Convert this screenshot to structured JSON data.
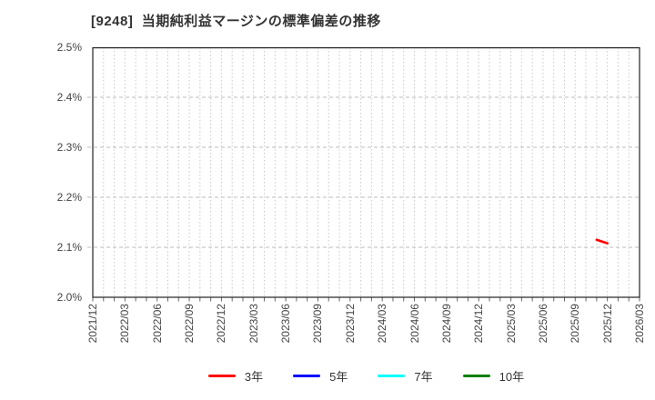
{
  "title": "[9248]  当期純利益マージンの標準偏差の推移",
  "chart_data": {
    "type": "line",
    "title": "[9248]  当期純利益マージンの標準偏差の推移",
    "x_categories": [
      "2021/12",
      "2022/03",
      "2022/06",
      "2022/09",
      "2022/12",
      "2023/03",
      "2023/06",
      "2023/09",
      "2023/12",
      "2024/03",
      "2024/06",
      "2024/09",
      "2024/12",
      "2025/03",
      "2025/06",
      "2025/09",
      "2025/12",
      "2026/03"
    ],
    "ytick_labels": [
      "2.5%",
      "2.4%",
      "2.3%",
      "2.2%",
      "2.1%",
      "2.0%"
    ],
    "ylim": [
      2.0,
      2.5
    ],
    "y_unit": "%",
    "grid": {
      "vertical": "monthly dotted",
      "horizontal": "0.1% dashed",
      "on": true
    },
    "legend_position": "bottom",
    "series": [
      {
        "name": "3年",
        "color": "#ff0000",
        "points": [
          {
            "x": "2025/11",
            "y": 2.115
          },
          {
            "x": "2025/12",
            "y": 2.108
          }
        ]
      },
      {
        "name": "5年",
        "color": "#0000ff",
        "points": []
      },
      {
        "name": "7年",
        "color": "#00ffff",
        "points": []
      },
      {
        "name": "10年",
        "color": "#008000",
        "points": []
      }
    ]
  },
  "colors": {
    "plot_border": "#222222",
    "grid_vertical": "#c8c8c8",
    "grid_horizontal": "#bdbdbd",
    "tick": "#666666",
    "tick_label": "#444444",
    "title": "#333333"
  }
}
